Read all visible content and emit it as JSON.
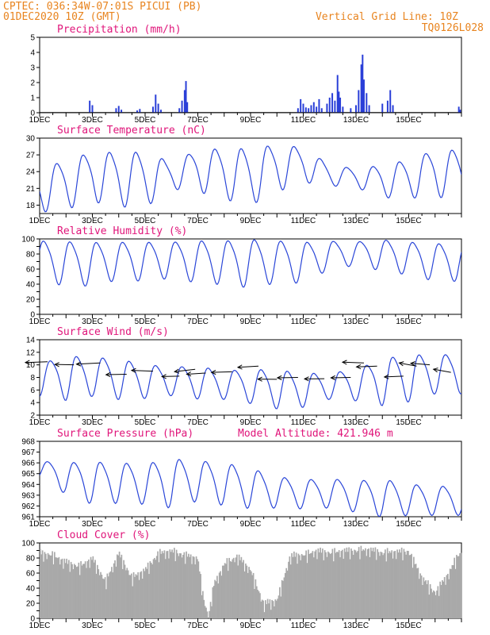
{
  "header": {
    "line1": "CPTEC:   036:34W-07:01S   PICUI (PB)",
    "line2": "01DEC2020 10Z (GMT)",
    "grid_note": "Vertical Grid Line: 10Z",
    "run_id": "TQ0126L028",
    "color": "#e8841f"
  },
  "colors": {
    "title": "#e0157a",
    "line": "#2a46d8",
    "bar": "#2a3fd8",
    "cloud": "#a9a9a9",
    "axis": "#000000"
  },
  "x_tick_labels": [
    "1DEC",
    "3DEC",
    "5DEC",
    "7DEC",
    "9DEC",
    "11DEC",
    "13DEC",
    "15DEC"
  ],
  "chart_data": [
    {
      "id": "precip",
      "type": "bar",
      "title": "Precipitation (mm/h)",
      "ylim": [
        0,
        5
      ],
      "yticks": [
        0,
        1,
        2,
        3,
        4,
        5
      ],
      "x_unit": "days since 01DEC2020 10Z",
      "points": [
        [
          1.9,
          0.8
        ],
        [
          2.0,
          0.5
        ],
        [
          2.9,
          0.3
        ],
        [
          3.0,
          0.45
        ],
        [
          3.1,
          0.2
        ],
        [
          3.7,
          0.15
        ],
        [
          3.8,
          0.25
        ],
        [
          4.3,
          0.4
        ],
        [
          4.4,
          1.2
        ],
        [
          4.5,
          0.6
        ],
        [
          4.6,
          0.2
        ],
        [
          5.3,
          0.3
        ],
        [
          5.4,
          0.8
        ],
        [
          5.5,
          1.5
        ],
        [
          5.55,
          2.1
        ],
        [
          5.6,
          0.7
        ],
        [
          9.8,
          0.3
        ],
        [
          9.9,
          0.9
        ],
        [
          10.0,
          0.6
        ],
        [
          10.1,
          0.35
        ],
        [
          10.2,
          0.3
        ],
        [
          10.3,
          0.5
        ],
        [
          10.4,
          0.7
        ],
        [
          10.5,
          0.4
        ],
        [
          10.6,
          0.9
        ],
        [
          10.7,
          0.3
        ],
        [
          10.9,
          0.6
        ],
        [
          11.0,
          1.0
        ],
        [
          11.1,
          1.3
        ],
        [
          11.2,
          0.8
        ],
        [
          11.3,
          2.5
        ],
        [
          11.35,
          1.4
        ],
        [
          11.4,
          1.0
        ],
        [
          11.5,
          0.4
        ],
        [
          11.8,
          0.3
        ],
        [
          12.0,
          0.5
        ],
        [
          12.1,
          1.5
        ],
        [
          12.2,
          3.2
        ],
        [
          12.25,
          3.85
        ],
        [
          12.3,
          2.2
        ],
        [
          12.4,
          1.3
        ],
        [
          12.5,
          0.5
        ],
        [
          13.0,
          0.6
        ],
        [
          13.2,
          0.8
        ],
        [
          13.3,
          1.5
        ],
        [
          13.4,
          0.5
        ],
        [
          15.9,
          0.4
        ],
        [
          15.95,
          0.2
        ]
      ]
    },
    {
      "id": "temp",
      "type": "line",
      "title": "Surface Temperature (nC)",
      "ylim": [
        16.5,
        30
      ],
      "yticks": [
        18,
        21,
        24,
        27,
        30
      ],
      "ytick_labels": [
        "18",
        "21",
        "24",
        "27",
        "30"
      ],
      "mean": [
        21,
        22,
        23.5,
        23,
        23,
        23.5,
        24.5,
        24,
        23.5,
        25,
        25.5,
        23.5,
        23,
        22.5,
        23,
        24
      ],
      "amp": [
        3.8,
        4.2,
        4.3,
        4.7,
        4.8,
        2.3,
        3.6,
        4.4,
        4.9,
        4.1,
        3.0,
        1.8,
        1.6,
        2.8,
        3.3,
        4.1
      ],
      "phase": 0.45
    },
    {
      "id": "rh",
      "type": "line",
      "title": "Relative Humidity (%)",
      "ylim": [
        0,
        100
      ],
      "yticks": [
        0,
        10,
        20,
        30,
        40,
        50,
        60,
        70,
        80,
        90,
        100
      ],
      "ytick_labels": [
        "0",
        "",
        "20",
        "",
        "40",
        "",
        "60",
        "",
        "80",
        "",
        "100"
      ],
      "mean": [
        72,
        70,
        69,
        73,
        72,
        74,
        72,
        71,
        70,
        72,
        71,
        80,
        82,
        80,
        76,
        71
      ],
      "amp": [
        27,
        28,
        28,
        24,
        25,
        23,
        27,
        28,
        31,
        27,
        26,
        18,
        15,
        20,
        21,
        24
      ],
      "phase": 0.95
    },
    {
      "id": "wind",
      "type": "line",
      "title": "Surface Wind (m/s)",
      "ylim": [
        2,
        14
      ],
      "yticks": [
        2,
        4,
        6,
        8,
        10,
        12,
        14
      ],
      "ytick_labels": [
        "2",
        "4",
        "6",
        "8",
        "10",
        "12",
        "14"
      ],
      "mean": [
        7.8,
        8.2,
        8.4,
        8.0,
        7.6,
        7.6,
        7.4,
        7.0,
        6.8,
        6.4,
        6.2,
        6.8,
        7.0,
        7.6,
        8.2,
        8.8
      ],
      "amp": [
        2.5,
        3.4,
        3.0,
        3.1,
        2.6,
        2.2,
        2.5,
        2.2,
        2.6,
        3.0,
        2.6,
        2.0,
        2.4,
        3.6,
        3.6,
        3.0
      ],
      "phase": 0.2,
      "arrows": [
        [
          0.3,
          10.5,
          -28,
          1.0
        ],
        [
          1.3,
          10.0,
          -24,
          -0.5
        ],
        [
          2.3,
          10.3,
          -30,
          1.5
        ],
        [
          3.3,
          8.5,
          -26,
          0.5
        ],
        [
          4.3,
          9.0,
          -27,
          -1.0
        ],
        [
          5.3,
          8.2,
          -22,
          0.5
        ],
        [
          5.9,
          9.3,
          -26,
          3.0
        ],
        [
          6.3,
          8.7,
          -24,
          1.5
        ],
        [
          7.3,
          8.9,
          -26,
          0.8
        ],
        [
          8.3,
          9.8,
          -26,
          1.5
        ],
        [
          9.0,
          7.7,
          -24,
          -0.2
        ],
        [
          9.8,
          8.0,
          -26,
          0.5
        ],
        [
          10.8,
          7.8,
          -25,
          0.3
        ],
        [
          11.8,
          8.0,
          -25,
          0.5
        ],
        [
          12.3,
          10.3,
          -27,
          -1.0
        ],
        [
          12.8,
          9.8,
          -26,
          1.0
        ],
        [
          13.8,
          8.2,
          -24,
          1.0
        ],
        [
          14.3,
          9.8,
          -22,
          -4.0
        ],
        [
          14.8,
          10.0,
          -24,
          -2.0
        ],
        [
          15.6,
          8.8,
          -22,
          -4.0
        ]
      ]
    },
    {
      "id": "pres",
      "type": "line",
      "title": "Surface Pressure (hPa)",
      "extra_label": "Model Altitude: 421.946 m",
      "ylim": [
        961,
        968
      ],
      "yticks": [
        961,
        962,
        963,
        964,
        965,
        966,
        967,
        968
      ],
      "ytick_labels": [
        "961",
        "962",
        "963",
        "964",
        "965",
        "966",
        "967",
        "968"
      ],
      "mean": [
        965.4,
        964.7,
        964.3,
        964.3,
        964.2,
        964.3,
        964.5,
        964.2,
        963.8,
        963.4,
        963.2,
        963.3,
        963.0,
        962.9,
        962.7,
        962.6
      ],
      "amp": [
        0.8,
        1.4,
        1.9,
        1.8,
        1.8,
        2.2,
        1.8,
        1.9,
        1.8,
        1.4,
        1.3,
        1.3,
        1.4,
        1.7,
        1.4,
        1.3
      ],
      "phase": 0.1
    },
    {
      "id": "cloud",
      "type": "area",
      "title": "Cloud Cover (%)",
      "ylim": [
        0,
        100
      ],
      "yticks": [
        0,
        10,
        20,
        30,
        40,
        50,
        60,
        70,
        80,
        90,
        100
      ],
      "ytick_labels": [
        "0",
        "",
        "20",
        "",
        "40",
        "",
        "60",
        "",
        "80",
        "",
        "100"
      ],
      "x": [
        0.1,
        0.5,
        1.0,
        1.5,
        2.0,
        2.5,
        3.0,
        3.5,
        4.0,
        4.5,
        5.0,
        5.5,
        6.0,
        6.2,
        6.4,
        6.6,
        7.0,
        7.5,
        8.0,
        8.5,
        9.0,
        9.5,
        10.0,
        10.5,
        11.0,
        11.5,
        12.0,
        12.5,
        13.0,
        13.5,
        14.0,
        14.5,
        15.0,
        15.5,
        15.9
      ],
      "values": [
        92,
        90,
        80,
        75,
        85,
        55,
        92,
        60,
        70,
        92,
        95,
        90,
        85,
        35,
        8,
        50,
        78,
        88,
        70,
        25,
        30,
        88,
        90,
        95,
        93,
        95,
        96,
        97,
        93,
        94,
        95,
        60,
        40,
        65,
        92
      ]
    }
  ]
}
